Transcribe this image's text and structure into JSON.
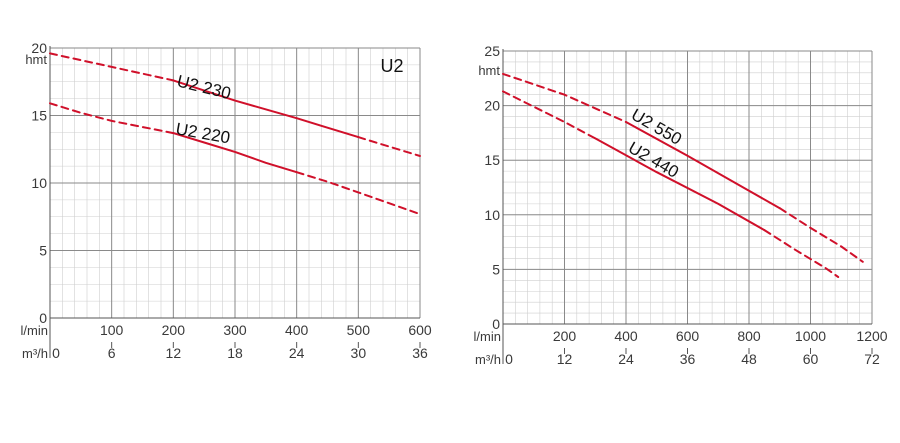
{
  "colors": {
    "curve": "#d0102a",
    "grid_major": "#8a8a8a",
    "grid_minor": "#cfcfcf",
    "axis": "#555555",
    "text": "#3a3a3a"
  },
  "chart_data": [
    {
      "type": "line",
      "title": "U2",
      "ylabel": "hmt",
      "xlabel": "l/min",
      "xlabel2": "m³/h",
      "xlim": [
        0,
        600
      ],
      "ylim": [
        0,
        20
      ],
      "x_ticks": [
        "100",
        "200",
        "300",
        "400",
        "500",
        "600"
      ],
      "x2_ticks": [
        "0",
        "6",
        "12",
        "18",
        "24",
        "30",
        "36"
      ],
      "y_ticks": [
        "0",
        "5",
        "10",
        "15",
        "20"
      ],
      "series": [
        {
          "name": "U2 230",
          "dashed_low": [
            [
              0,
              19.6
            ],
            [
              100,
              18.6
            ],
            [
              200,
              17.6
            ]
          ],
          "solid": [
            [
              200,
              17.6
            ],
            [
              300,
              16.1
            ],
            [
              400,
              14.8
            ],
            [
              450,
              14.1
            ],
            [
              500,
              13.4
            ]
          ],
          "dashed_high": [
            [
              500,
              13.4
            ],
            [
              550,
              12.7
            ],
            [
              600,
              12.0
            ]
          ]
        },
        {
          "name": "U2 220",
          "dashed_low": [
            [
              0,
              15.9
            ],
            [
              50,
              15.2
            ],
            [
              100,
              14.6
            ],
            [
              200,
              13.7
            ]
          ],
          "solid": [
            [
              200,
              13.7
            ],
            [
              250,
              13.0
            ],
            [
              300,
              12.3
            ],
            [
              350,
              11.5
            ],
            [
              400,
              10.8
            ]
          ],
          "dashed_high": [
            [
              400,
              10.8
            ],
            [
              450,
              10.1
            ],
            [
              500,
              9.3
            ],
            [
              600,
              7.7
            ]
          ]
        }
      ]
    },
    {
      "type": "line",
      "title": "",
      "ylabel": "hmt",
      "xlabel": "l/min",
      "xlabel2": "m³/h",
      "xlim": [
        0,
        1200
      ],
      "ylim": [
        0,
        25
      ],
      "x_ticks": [
        "200",
        "400",
        "600",
        "800",
        "1000",
        "1200"
      ],
      "x2_ticks": [
        "0",
        "12",
        "24",
        "36",
        "48",
        "60",
        "72"
      ],
      "y_ticks": [
        "0",
        "5",
        "10",
        "15",
        "20",
        "25"
      ],
      "series": [
        {
          "name": "U2 550",
          "dashed_low": [
            [
              0,
              22.9
            ],
            [
              200,
              21.0
            ],
            [
              400,
              18.5
            ]
          ],
          "solid": [
            [
              400,
              18.5
            ],
            [
              600,
              15.4
            ],
            [
              800,
              12.2
            ],
            [
              900,
              10.6
            ]
          ],
          "dashed_high": [
            [
              900,
              10.6
            ],
            [
              1000,
              8.8
            ],
            [
              1100,
              7.1
            ],
            [
              1170,
              5.7
            ]
          ]
        },
        {
          "name": "U2 440",
          "dashed_low": [
            [
              0,
              21.3
            ],
            [
              200,
              18.5
            ],
            [
              300,
              17.0
            ]
          ],
          "solid": [
            [
              300,
              17.0
            ],
            [
              500,
              13.9
            ],
            [
              700,
              11.0
            ],
            [
              850,
              8.6
            ]
          ],
          "dashed_high": [
            [
              850,
              8.6
            ],
            [
              950,
              6.8
            ],
            [
              1050,
              5.1
            ],
            [
              1090,
              4.3
            ]
          ]
        }
      ]
    }
  ]
}
